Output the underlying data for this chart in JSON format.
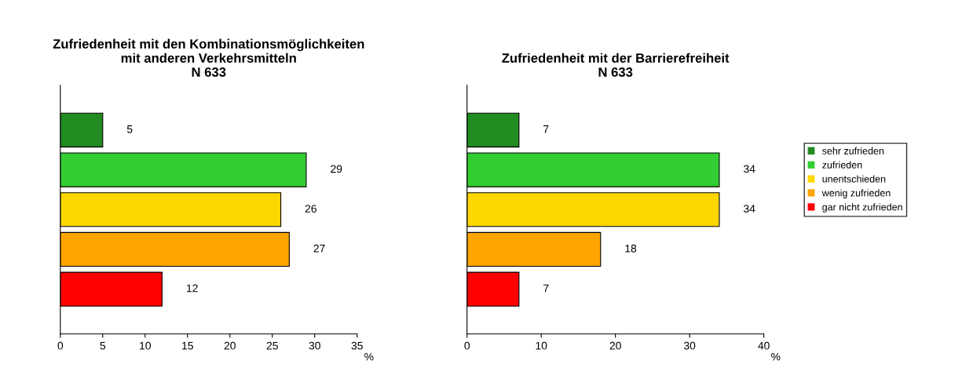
{
  "chart_data": [
    {
      "type": "bar",
      "orientation": "horizontal",
      "title": "Zufriedenheit mit den Kombinationsmöglichkeiten\nmit anderen Verkehrsmitteln\nN 633",
      "xlabel": "%",
      "categories": [
        null
      ],
      "xlim": [
        0,
        35
      ],
      "xticks": [
        0,
        5,
        10,
        15,
        20,
        25,
        30,
        35
      ],
      "data_labels": true,
      "legend": false,
      "grid": false,
      "tick_labels": "x",
      "series": [
        {
          "color": "#228b22",
          "values": [
            5
          ]
        },
        {
          "color": "#32cd32",
          "values": [
            29
          ]
        },
        {
          "color": "#ffd700",
          "values": [
            26
          ]
        },
        {
          "color": "#ffa500",
          "values": [
            27
          ]
        },
        {
          "color": "#ff0000",
          "values": [
            12
          ]
        }
      ]
    },
    {
      "type": "bar",
      "orientation": "horizontal",
      "title": "Zufriedenheit mit der Barrierefreiheit\nN 633",
      "xlabel": "%",
      "categories": [
        null
      ],
      "xlim": [
        0,
        40
      ],
      "xticks": [
        0,
        10,
        20,
        30,
        40
      ],
      "data_labels": true,
      "legend": "right",
      "grid": false,
      "tick_labels": "x",
      "series": [
        {
          "name": "sehr zufrieden",
          "color": "#228b22",
          "values": [
            7
          ]
        },
        {
          "name": "zufrieden",
          "color": "#32cd32",
          "values": [
            34
          ]
        },
        {
          "name": "unentschieden",
          "color": "#ffd700",
          "values": [
            34
          ]
        },
        {
          "name": "wenig zufrieden",
          "color": "#ffa500",
          "values": [
            18
          ]
        },
        {
          "name": "gar nicht zufrieden",
          "color": "#ff0000",
          "values": [
            7
          ]
        }
      ]
    }
  ]
}
